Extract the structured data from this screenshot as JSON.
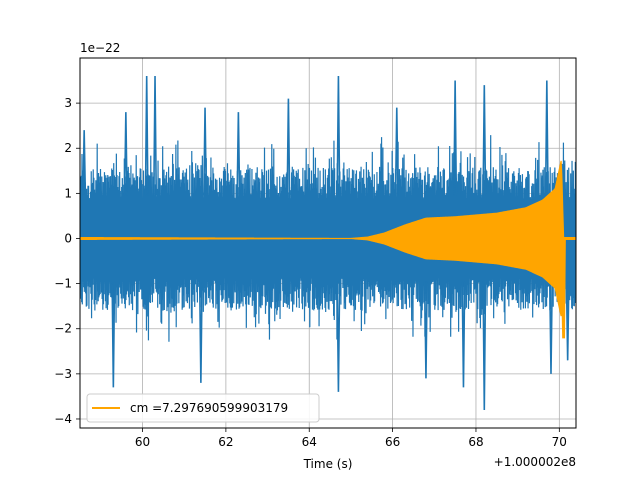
{
  "chart_data": {
    "type": "line",
    "title": "",
    "xlabel": "Time (s)",
    "ylabel": "",
    "x_offset_label": "+1.000002e8",
    "y_scale_label": "1e−22",
    "xlim": [
      58.5,
      70.4
    ],
    "ylim": [
      -4.2,
      4.0
    ],
    "x_ticks": [
      {
        "value": 60,
        "label": "60"
      },
      {
        "value": 62,
        "label": "62"
      },
      {
        "value": 64,
        "label": "64"
      },
      {
        "value": 66,
        "label": "66"
      },
      {
        "value": 68,
        "label": "68"
      },
      {
        "value": 70,
        "label": "70"
      }
    ],
    "y_ticks": [
      {
        "value": -4,
        "label": "−4"
      },
      {
        "value": -3,
        "label": "−3"
      },
      {
        "value": -2,
        "label": "−2"
      },
      {
        "value": -1,
        "label": "−1"
      },
      {
        "value": 0,
        "label": "0"
      },
      {
        "value": 1,
        "label": "1"
      },
      {
        "value": 2,
        "label": "2"
      },
      {
        "value": 3,
        "label": "3"
      }
    ],
    "grid": true,
    "legend_position": "lower-left",
    "series": [
      {
        "kind": "noisy-strain",
        "color": "#1f77b4",
        "baseline_amplitude": 1.6,
        "spike_peaks": [
          {
            "x": 58.6,
            "y": 2.4
          },
          {
            "x": 59.6,
            "y": 2.8
          },
          {
            "x": 60.1,
            "y": 3.6
          },
          {
            "x": 60.3,
            "y": 3.6
          },
          {
            "x": 61.5,
            "y": 2.9
          },
          {
            "x": 62.3,
            "y": 2.8
          },
          {
            "x": 63.5,
            "y": 3.1
          },
          {
            "x": 64.7,
            "y": 3.6
          },
          {
            "x": 66.1,
            "y": 2.9
          },
          {
            "x": 67.5,
            "y": 3.5
          },
          {
            "x": 68.2,
            "y": 3.4
          },
          {
            "x": 69.7,
            "y": 3.5
          },
          {
            "x": 59.3,
            "y": -3.3
          },
          {
            "x": 61.4,
            "y": -3.2
          },
          {
            "x": 64.7,
            "y": -3.4
          },
          {
            "x": 66.8,
            "y": -3.1
          },
          {
            "x": 67.7,
            "y": -3.3
          },
          {
            "x": 68.2,
            "y": -3.8
          },
          {
            "x": 69.8,
            "y": -3.0
          },
          {
            "x": 70.2,
            "y": -2.7
          }
        ]
      },
      {
        "name": "cm =7.297690599903179",
        "kind": "chirp-template",
        "color": "#ffa500",
        "envelope": [
          {
            "x": 58.5,
            "y": 0.02
          },
          {
            "x": 65.0,
            "y": 0.0
          },
          {
            "x": 65.4,
            "y": 0.03
          },
          {
            "x": 65.8,
            "y": 0.12
          },
          {
            "x": 66.3,
            "y": 0.3
          },
          {
            "x": 66.8,
            "y": 0.45
          },
          {
            "x": 67.5,
            "y": 0.48
          },
          {
            "x": 68.5,
            "y": 0.56
          },
          {
            "x": 69.2,
            "y": 0.68
          },
          {
            "x": 69.6,
            "y": 0.85
          },
          {
            "x": 69.9,
            "y": 1.1
          },
          {
            "x": 70.05,
            "y": 1.75
          },
          {
            "x": 70.1,
            "y": 0.02
          },
          {
            "x": 70.4,
            "y": 0.02
          }
        ],
        "merger_x": 70.1,
        "merger_min_y": -2.2
      }
    ]
  }
}
